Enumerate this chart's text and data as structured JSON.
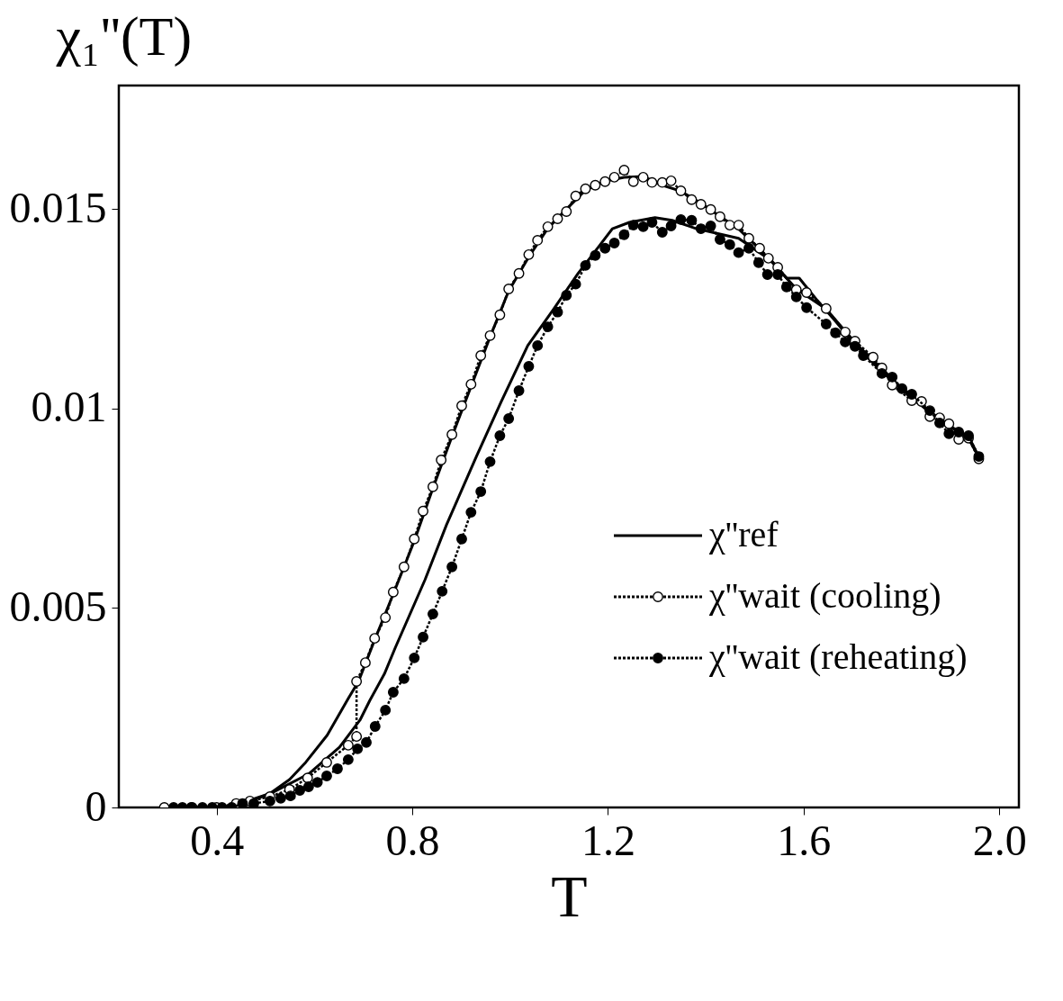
{
  "chart_data": {
    "type": "line",
    "xlabel": "T",
    "ylabel": "χ₁''(T)",
    "xlim": [
      0.2,
      2.04
    ],
    "ylim": [
      0,
      0.0181
    ],
    "xticks": [
      0.4,
      0.8,
      1.2,
      1.6,
      {
        "value": 2.0,
        "label": "2.0"
      }
    ],
    "yticks": [
      0,
      0.005,
      0.01,
      0.015
    ],
    "grid": false,
    "legend": "bottom right",
    "series": [
      {
        "name": "χ''ref",
        "color": "#000000",
        "line_style": "solid",
        "marker": "none",
        "x": [
          0.35,
          0.42,
          0.468,
          0.509,
          0.549,
          0.582,
          0.626,
          0.669,
          0.69,
          0.723,
          0.761,
          0.804,
          0.842,
          0.881,
          0.92,
          0.959,
          0.997,
          1.038,
          1.077,
          1.115,
          1.154,
          1.194,
          1.233,
          1.272,
          1.311,
          1.349,
          1.39,
          1.429,
          1.467,
          1.51,
          1.547,
          1.585,
          1.646,
          1.705,
          1.76,
          1.821,
          1.878,
          1.937,
          1.958
        ],
        "values": [
          0,
          0,
          0.00018,
          0.00035,
          0.0007,
          0.00113,
          0.00181,
          0.00273,
          0.00316,
          0.0042,
          0.00535,
          0.00668,
          0.008,
          0.0093,
          0.01055,
          0.0118,
          0.01295,
          0.0138,
          0.01452,
          0.015,
          0.01548,
          0.0157,
          0.0158,
          0.01582,
          0.0156,
          0.01545,
          0.01515,
          0.01482,
          0.0145,
          0.014,
          0.01352,
          0.013,
          0.0125,
          0.01165,
          0.011,
          0.01025,
          0.00975,
          0.00925,
          0.00878
        ]
      },
      {
        "color": "#000000",
        "line_style": "solid",
        "marker": "none",
        "x": [
          0.4,
          0.453,
          0.509,
          0.588,
          0.651,
          0.693,
          0.713,
          0.743,
          0.765,
          0.826,
          0.87,
          0.931,
          0.982,
          1.036,
          1.088,
          1.139,
          1.183,
          1.209,
          1.244,
          1.296,
          1.331,
          1.381,
          1.467,
          1.535,
          1.565,
          1.591,
          1.628,
          1.665,
          1.705,
          1.76,
          1.821,
          1.878,
          1.937,
          1.958
        ],
        "values": [
          0,
          0.0001,
          0.00034,
          0.00084,
          0.00151,
          0.00219,
          0.00268,
          0.00335,
          0.004,
          0.00571,
          0.00709,
          0.0088,
          0.01018,
          0.01158,
          0.01248,
          0.01339,
          0.01409,
          0.01451,
          0.01467,
          0.01479,
          0.01472,
          0.01451,
          0.01427,
          0.0137,
          0.01327,
          0.01327,
          0.01271,
          0.01219,
          0.0116,
          0.01092,
          0.0103,
          0.00968,
          0.0093,
          0.0088
        ]
      },
      {
        "name": "χ''wait (cooling)",
        "color": "#000000",
        "line_style": "dotted",
        "marker": "circle",
        "x": [
          0.293,
          0.35,
          0.4,
          0.44,
          0.468,
          0.509,
          0.549,
          0.586,
          0.625,
          0.669,
          0.686,
          0.686,
          0.704,
          0.723,
          0.745,
          0.761,
          0.783,
          0.804,
          0.822,
          0.842,
          0.859,
          0.881,
          0.901,
          0.92,
          0.94,
          0.959,
          0.979,
          0.997,
          1.018,
          1.038,
          1.056,
          1.077,
          1.097,
          1.115,
          1.134,
          1.154,
          1.174,
          1.194,
          1.213,
          1.233,
          1.252,
          1.272,
          1.29,
          1.311,
          1.329,
          1.349,
          1.371,
          1.39,
          1.41,
          1.429,
          1.449,
          1.467,
          1.488,
          1.51,
          1.528,
          1.547,
          1.585,
          1.606,
          1.646,
          1.685,
          1.705,
          1.742,
          1.76,
          1.781,
          1.821,
          1.841,
          1.858,
          1.878,
          1.897,
          1.917,
          1.937,
          1.958
        ],
        "values": [
          0,
          0,
          0,
          0.0001,
          0.00016,
          0.00027,
          0.00045,
          0.00074,
          0.00113,
          0.00156,
          0.00178,
          0.00316,
          0.00363,
          0.00424,
          0.00476,
          0.0054,
          0.00603,
          0.00673,
          0.00743,
          0.00804,
          0.00871,
          0.00935,
          0.01007,
          0.01061,
          0.01133,
          0.01183,
          0.01235,
          0.013,
          0.01339,
          0.01386,
          0.01422,
          0.01456,
          0.01476,
          0.01494,
          0.01533,
          0.01551,
          0.0156,
          0.01569,
          0.0158,
          0.01598,
          0.01569,
          0.0158,
          0.01567,
          0.01567,
          0.01571,
          0.01546,
          0.01524,
          0.01512,
          0.01499,
          0.01481,
          0.0146,
          0.0146,
          0.01427,
          0.01402,
          0.01377,
          0.01354,
          0.01298,
          0.01291,
          0.01251,
          0.01192,
          0.01169,
          0.01129,
          0.01102,
          0.01059,
          0.0102,
          0.01018,
          0.0098,
          0.00977,
          0.00962,
          0.00923,
          0.00926,
          0.00874
        ]
      },
      {
        "name": "χ''wait (reheating)",
        "color": "#000000",
        "line_style": "dotted",
        "marker": "circle",
        "x": [
          0.312,
          0.33,
          0.348,
          0.371,
          0.391,
          0.411,
          0.431,
          0.453,
          0.476,
          0.509,
          0.531,
          0.551,
          0.57,
          0.588,
          0.606,
          0.625,
          0.647,
          0.669,
          0.688,
          0.706,
          0.724,
          0.745,
          0.761,
          0.783,
          0.804,
          0.822,
          0.842,
          0.861,
          0.881,
          0.901,
          0.92,
          0.94,
          0.959,
          0.979,
          0.997,
          1.018,
          1.038,
          1.056,
          1.077,
          1.097,
          1.115,
          1.134,
          1.154,
          1.174,
          1.194,
          1.213,
          1.233,
          1.252,
          1.272,
          1.29,
          1.311,
          1.329,
          1.349,
          1.371,
          1.39,
          1.41,
          1.429,
          1.449,
          1.467,
          1.488,
          1.508,
          1.526,
          1.547,
          1.565,
          1.585,
          1.606,
          1.646,
          1.665,
          1.685,
          1.705,
          1.722,
          1.76,
          1.781,
          1.801,
          1.821,
          1.858,
          1.878,
          1.897,
          1.917,
          1.937,
          1.958
        ],
        "values": [
          0,
          0,
          0,
          0,
          0,
          0,
          0,
          0.0001,
          0.0001,
          0.00016,
          0.00023,
          0.00029,
          0.00043,
          0.00052,
          0.00063,
          0.00079,
          0.00097,
          0.0012,
          0.00147,
          0.00163,
          0.00203,
          0.00244,
          0.00289,
          0.00323,
          0.00375,
          0.00427,
          0.00485,
          0.00542,
          0.00603,
          0.00673,
          0.0074,
          0.00792,
          0.00867,
          0.00932,
          0.00975,
          0.01045,
          0.01106,
          0.01158,
          0.01205,
          0.01242,
          0.01284,
          0.01312,
          0.01359,
          0.01384,
          0.01402,
          0.01415,
          0.01436,
          0.0146,
          0.01456,
          0.01467,
          0.01442,
          0.01458,
          0.01474,
          0.01472,
          0.01451,
          0.01458,
          0.01424,
          0.01411,
          0.01391,
          0.01402,
          0.01366,
          0.01336,
          0.01336,
          0.01305,
          0.0128,
          0.01253,
          0.01212,
          0.0119,
          0.01167,
          0.01156,
          0.01133,
          0.01088,
          0.01079,
          0.0105,
          0.01036,
          0.00995,
          0.00964,
          0.00937,
          0.00941,
          0.00932,
          0.0088
        ]
      }
    ]
  }
}
